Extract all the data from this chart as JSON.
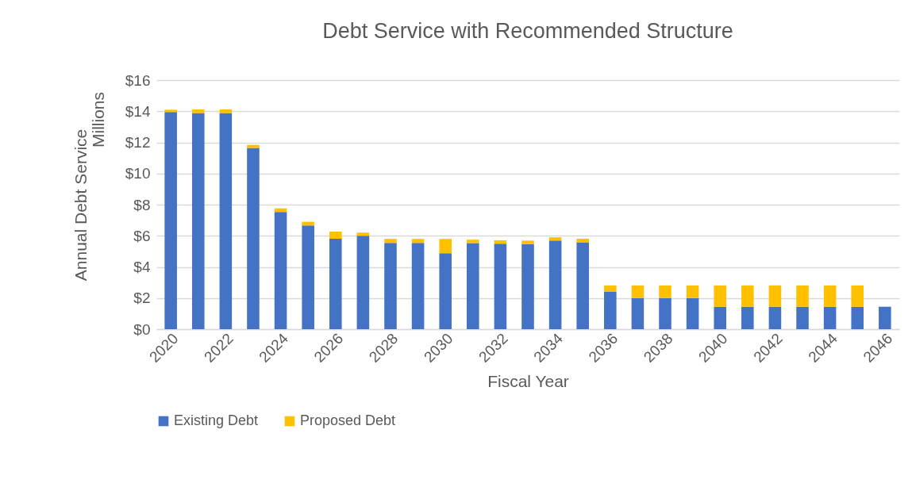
{
  "chart_data": {
    "type": "bar",
    "title": "Debt Service with Recommended Structure",
    "xlabel": "Fiscal Year",
    "ylabel": "Annual Debt Service",
    "annotations": [
      "Millions"
    ],
    "categories": [
      "2020",
      null,
      "2022",
      null,
      "2024",
      null,
      "2026",
      null,
      "2028",
      null,
      "2030",
      null,
      "2032",
      null,
      "2034",
      null,
      "2036",
      null,
      "2038",
      null,
      "2040",
      null,
      "2042",
      null,
      "2044",
      null,
      "2046"
    ],
    "stacked": true,
    "series": [
      {
        "name": "Existing Debt",
        "color": "#4472c4",
        "values": [
          13.95,
          13.88,
          13.88,
          11.64,
          7.53,
          6.66,
          5.81,
          6.0,
          5.54,
          5.54,
          4.88,
          5.53,
          5.49,
          5.47,
          5.69,
          5.58,
          2.42,
          2.0,
          2.0,
          2.0,
          1.44,
          1.44,
          1.44,
          1.44,
          1.44,
          1.44,
          1.44
        ]
      },
      {
        "name": "Proposed Debt",
        "color": "#ffc000",
        "values": [
          0.15,
          0.24,
          0.24,
          0.2,
          0.23,
          0.24,
          0.46,
          0.2,
          0.26,
          0.26,
          0.92,
          0.22,
          0.22,
          0.22,
          0.21,
          0.23,
          0.39,
          0.81,
          0.81,
          0.81,
          1.37,
          1.37,
          1.37,
          1.37,
          1.37,
          1.37,
          0
        ]
      }
    ],
    "ylim": [
      0,
      16
    ],
    "yticks": [
      {
        "value": 0,
        "label": "$0"
      },
      {
        "value": 2,
        "label": "$2"
      },
      {
        "value": 4,
        "label": "$4"
      },
      {
        "value": 6,
        "label": "$6"
      },
      {
        "value": 8,
        "label": "$8"
      },
      {
        "value": 10,
        "label": "$10"
      },
      {
        "value": 12,
        "label": "$12"
      },
      {
        "value": 14,
        "label": "$14"
      },
      {
        "value": 16,
        "label": "$16"
      }
    ],
    "grid": "y",
    "legend": "bottom"
  }
}
